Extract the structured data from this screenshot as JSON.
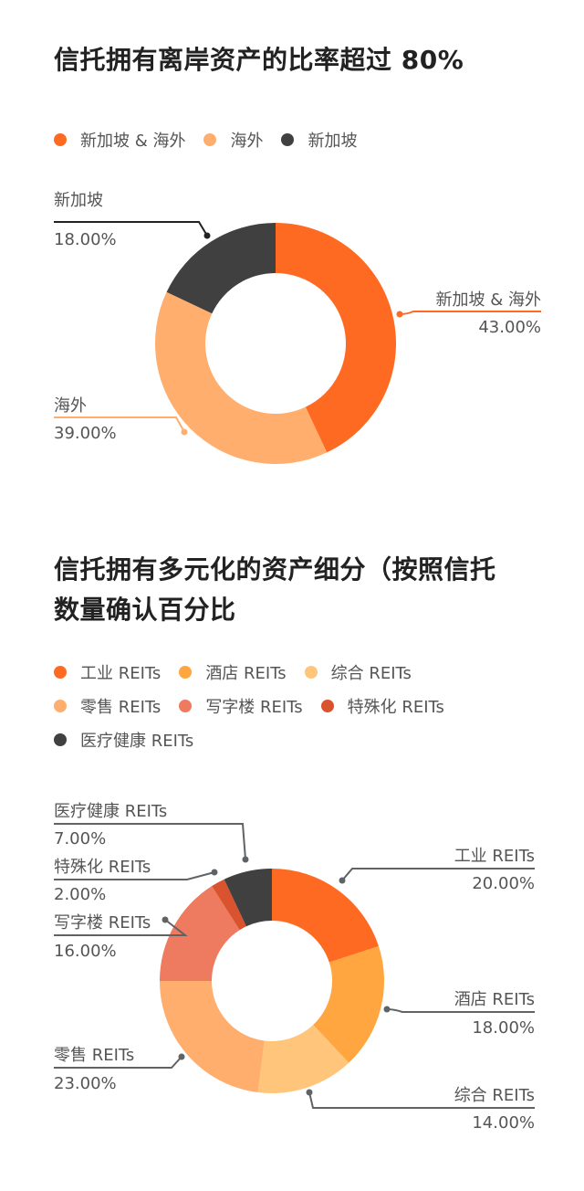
{
  "sections": [
    {
      "title": "信托拥有离岸资产的比率超过 80%",
      "legend": [
        {
          "label": "新加坡 & 海外",
          "color": "#FF6A23"
        },
        {
          "label": "海外",
          "color": "#FFAE6E"
        },
        {
          "label": "新加坡",
          "color": "#404040"
        }
      ]
    },
    {
      "title_line1": "信托拥有多元化的资产细分（按照信托",
      "title_line2": "数量确认百分比",
      "legend": [
        {
          "label": "工业 REITs",
          "color": "#FF6A23"
        },
        {
          "label": "酒店 REITs",
          "color": "#FFA640"
        },
        {
          "label": "综合 REITs",
          "color": "#FFC57A"
        },
        {
          "label": "零售 REITs",
          "color": "#FFAE6E"
        },
        {
          "label": "写字楼 REITs",
          "color": "#EE7A60"
        },
        {
          "label": "特殊化 REITs",
          "color": "#D9532E"
        },
        {
          "label": "医疗健康 REITs",
          "color": "#404040"
        }
      ]
    }
  ],
  "chart_data": [
    {
      "type": "pie",
      "subtype": "donut",
      "title": "信托拥有离岸资产的比率超过 80%",
      "categories": [
        "新加坡 & 海外",
        "海外",
        "新加坡"
      ],
      "values": [
        43.0,
        39.0,
        18.0
      ],
      "value_labels": [
        "43.00%",
        "39.00%",
        "18.00%"
      ],
      "colors": [
        "#FF6A23",
        "#FFAE6E",
        "#404040"
      ],
      "start_angle": "12 o'clock, clockwise",
      "legend_position": "top"
    },
    {
      "type": "pie",
      "subtype": "donut",
      "title": "信托拥有多元化的资产细分（按照信托数量确认百分比",
      "categories": [
        "工业 REITs",
        "酒店 REITs",
        "综合 REITs",
        "零售 REITs",
        "写字楼 REITs",
        "特殊化 REITs",
        "医疗健康 REITs"
      ],
      "values": [
        20.0,
        18.0,
        14.0,
        23.0,
        16.0,
        2.0,
        7.0
      ],
      "value_labels": [
        "20.00%",
        "18.00%",
        "14.00%",
        "23.00%",
        "16.00%",
        "2.00%",
        "7.00%"
      ],
      "colors": [
        "#FF6A23",
        "#FFA640",
        "#FFC57A",
        "#FFAE6E",
        "#EE7A60",
        "#D9532E",
        "#404040"
      ],
      "start_angle": "12 o'clock, clockwise",
      "legend_position": "top"
    }
  ]
}
